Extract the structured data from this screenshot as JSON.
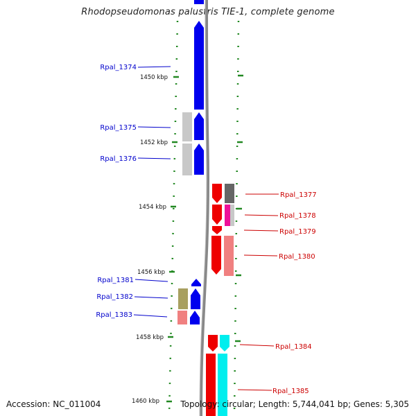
{
  "title": "Rhodopseudomonas palustris TIE-1, complete genome",
  "footer": {
    "accession": "Accession: NC_011004",
    "topology": "Topology: circular; Length: 5,744,041 bp; Genes: 5,305"
  },
  "scale_labels": [
    "1450 kbp",
    "1452 kbp",
    "1454 kbp",
    "1456 kbp",
    "1458 kbp",
    "1460 kbp"
  ],
  "genes_left": [
    "Rpal_1374",
    "Rpal_1375",
    "Rpal_1376",
    "Rpal_1381",
    "Rpal_1382",
    "Rpal_1383"
  ],
  "genes_right": [
    "Rpal_1377",
    "Rpal_1378",
    "Rpal_1379",
    "Rpal_1380",
    "Rpal_1384",
    "Rpal_1385"
  ],
  "colors": {
    "forward_strand_label": "#0000cc",
    "reverse_strand_label": "#cc0000",
    "gene_blue": "#0000ee",
    "gene_red": "#ee0000",
    "gene_gray": "#c8c8c8",
    "gene_darkgray": "#666666",
    "gene_magenta": "#ee1199",
    "gene_pink": "#f08080",
    "gene_olive": "#a8a060",
    "gene_cyan": "#00eeee",
    "tick_green": "#228822",
    "backbone": "#888888"
  }
}
